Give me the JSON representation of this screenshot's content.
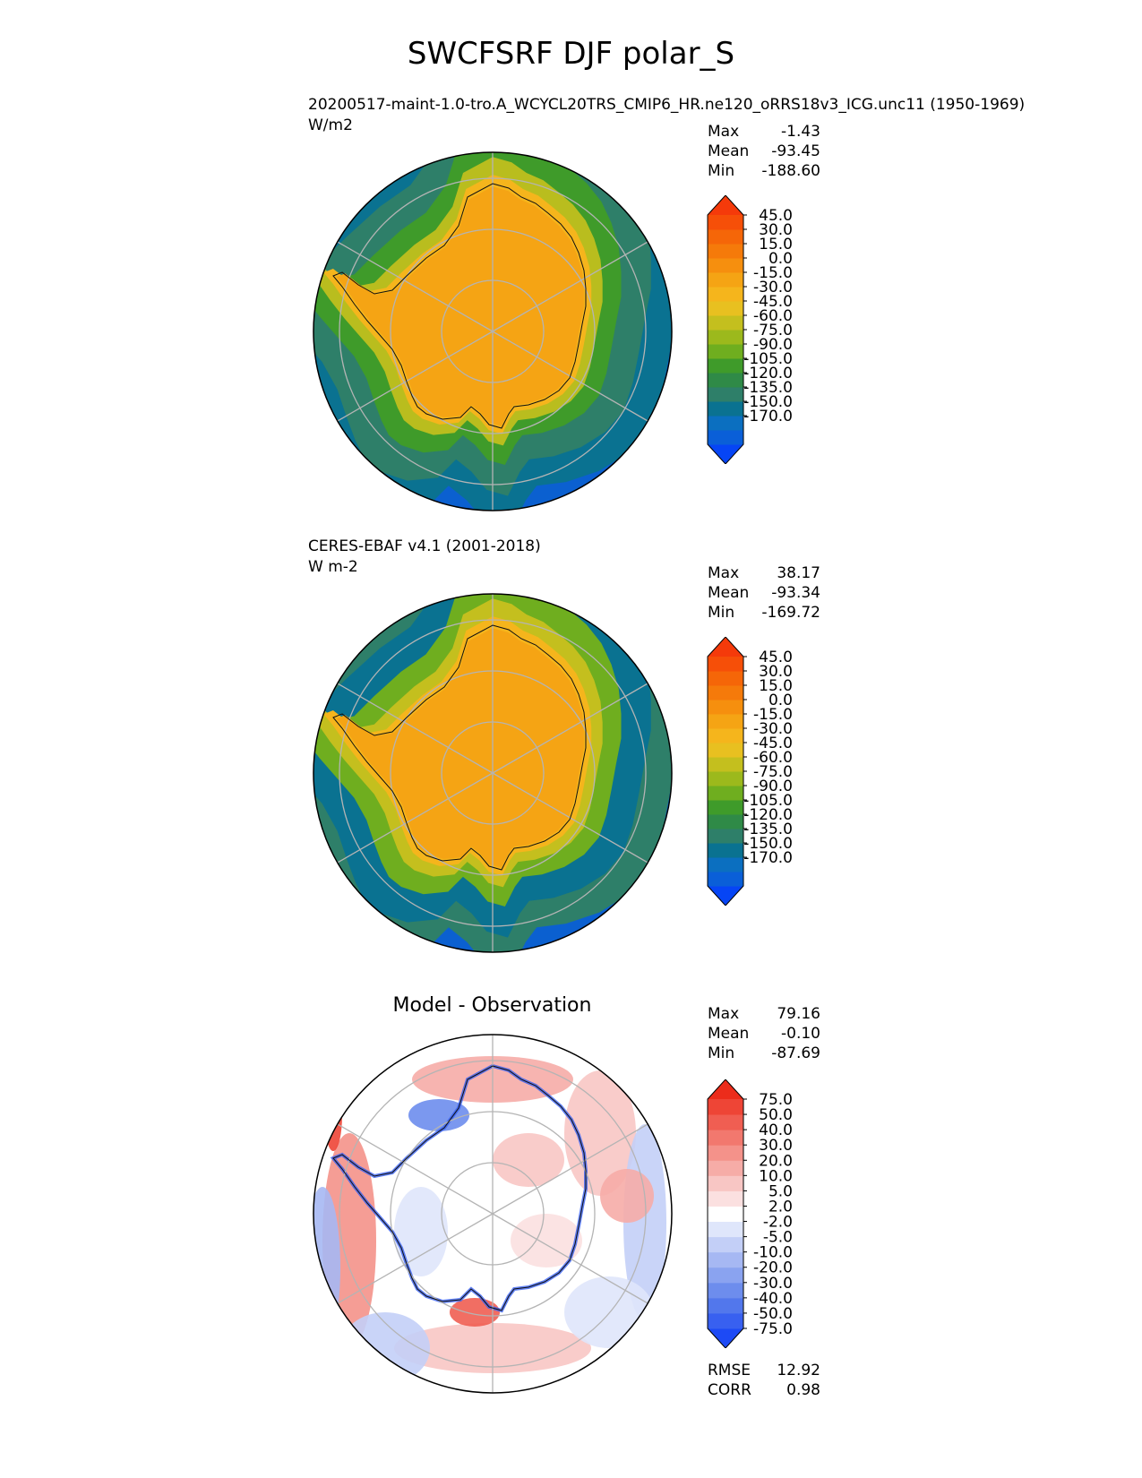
{
  "main_title": "SWCFSRF DJF polar_S",
  "panels": [
    {
      "case_name": "20200517-maint-1.0-tro.A_WCYCL20TRS_CMIP6_HR.ne120_oRRS18v3_ICG.unc11 (1950-1969)",
      "units": "W/m2",
      "center_title": "",
      "stats": {
        "max_label": "Max",
        "max": "-1.43",
        "mean_label": "Mean",
        "mean": "-93.45",
        "min_label": "Min",
        "min": "-188.60"
      },
      "colorbar": {
        "ticks": [
          "45.0",
          "30.0",
          "15.0",
          "0.0",
          "-15.0",
          "-30.0",
          "-45.0",
          "-60.0",
          "-75.0",
          "-90.0",
          "-105.0",
          "-120.0",
          "-135.0",
          "-150.0",
          "-170.0"
        ],
        "colors": [
          "#0645f5",
          "#0a5fd8",
          "#0b6fc0",
          "#0a7291",
          "#2e7f69",
          "#2f8a47",
          "#3f9b2a",
          "#6fae1f",
          "#9cb91c",
          "#c4bf1e",
          "#e8c020",
          "#f5b51c",
          "#f5a414",
          "#f68f0e",
          "#f57a0a",
          "#f56608",
          "#f64f08",
          "#f53a0a"
        ]
      }
    },
    {
      "case_name": "CERES-EBAF v4.1 (2001-2018)",
      "units": "W m-2",
      "center_title": "",
      "stats": {
        "max_label": "Max",
        "max": "38.17",
        "mean_label": "Mean",
        "mean": "-93.34",
        "min_label": "Min",
        "min": "-169.72"
      },
      "colorbar": {
        "ticks": [
          "45.0",
          "30.0",
          "15.0",
          "0.0",
          "-15.0",
          "-30.0",
          "-45.0",
          "-60.0",
          "-75.0",
          "-90.0",
          "-105.0",
          "-120.0",
          "-135.0",
          "-150.0",
          "-170.0"
        ],
        "colors": [
          "#0645f5",
          "#0a5fd8",
          "#0b6fc0",
          "#0a7291",
          "#2e7f69",
          "#2f8a47",
          "#3f9b2a",
          "#6fae1f",
          "#9cb91c",
          "#c4bf1e",
          "#e8c020",
          "#f5b51c",
          "#f5a414",
          "#f68f0e",
          "#f57a0a",
          "#f56608",
          "#f64f08",
          "#f53a0a"
        ]
      }
    },
    {
      "case_name": "",
      "units": "",
      "center_title": "Model - Observation",
      "stats": {
        "max_label": "Max",
        "max": "79.16",
        "mean_label": "Mean",
        "mean": "-0.10",
        "min_label": "Min",
        "min": "-87.69"
      },
      "colorbar": {
        "ticks": [
          "75.0",
          "50.0",
          "40.0",
          "30.0",
          "20.0",
          "10.0",
          "5.0",
          "2.0",
          "-2.0",
          "-5.0",
          "-10.0",
          "-20.0",
          "-30.0",
          "-40.0",
          "-50.0",
          "-75.0"
        ],
        "colors": [
          "#1d4af5",
          "#3860f0",
          "#5277ec",
          "#6d8ded",
          "#8aa3f0",
          "#a6b8f3",
          "#c3cff7",
          "#dfe6fb",
          "#ffffff",
          "#fbe0e0",
          "#f8c6c4",
          "#f6aca7",
          "#f4928a",
          "#f2786e",
          "#f05e52",
          "#ee4536",
          "#ec2c1b"
        ]
      },
      "metrics": {
        "rmse_label": "RMSE",
        "rmse": "12.92",
        "corr_label": "CORR",
        "corr": "0.98"
      }
    }
  ],
  "chart_data": [
    {
      "type": "heatmap",
      "projection": "south polar stereographic",
      "title": "20200517-maint-1.0-tro.A_WCYCL20TRS_CMIP6_HR.ne120_oRRS18v3_ICG.unc11 (1950-1969)",
      "units": "W/m2",
      "levels": [
        -170,
        -150,
        -135,
        -120,
        -105,
        -90,
        -75,
        -60,
        -45,
        -30,
        -15,
        0,
        15,
        30,
        45
      ],
      "max": -1.43,
      "mean": -93.45,
      "min": -188.6
    },
    {
      "type": "heatmap",
      "projection": "south polar stereographic",
      "title": "CERES-EBAF v4.1 (2001-2018)",
      "units": "W m-2",
      "levels": [
        -170,
        -150,
        -135,
        -120,
        -105,
        -90,
        -75,
        -60,
        -45,
        -30,
        -15,
        0,
        15,
        30,
        45
      ],
      "max": 38.17,
      "mean": -93.34,
      "min": -169.72
    },
    {
      "type": "heatmap",
      "projection": "south polar stereographic",
      "title": "Model - Observation",
      "levels": [
        -75,
        -50,
        -40,
        -30,
        -20,
        -10,
        -5,
        -2,
        2,
        5,
        10,
        20,
        30,
        40,
        50,
        75
      ],
      "max": 79.16,
      "mean": -0.1,
      "min": -87.69,
      "rmse": 12.92,
      "corr": 0.98
    }
  ]
}
